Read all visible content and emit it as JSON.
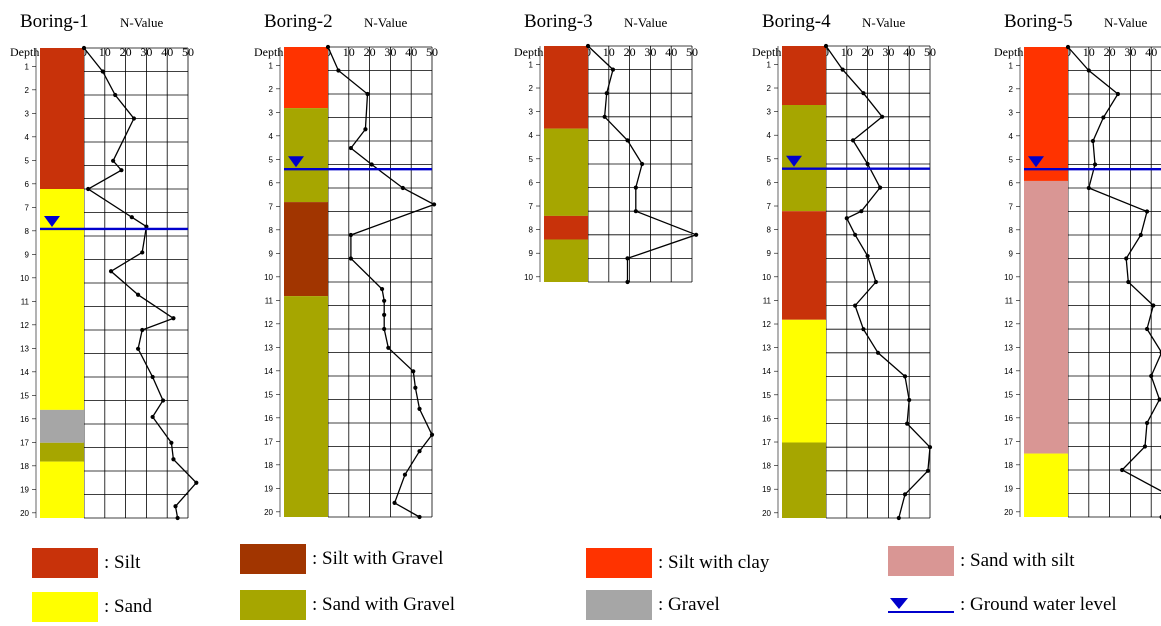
{
  "depth_label": "Depth",
  "nvalue_label": "N-Value",
  "nvalue_ticks": [
    0,
    10,
    20,
    30,
    40,
    50
  ],
  "depth_ticks": [
    1,
    2,
    3,
    4,
    5,
    6,
    7,
    8,
    9,
    10,
    11,
    12,
    13,
    14,
    15,
    16,
    17,
    18,
    19,
    20
  ],
  "soil_colors": {
    "silt": "#c8320a",
    "silt_with_gravel": "#a13500",
    "silt_with_clay": "#ff3300",
    "sand_with_silt": "#d99694",
    "sand": "#ffff00",
    "sand_with_gravel": "#a6a600",
    "gravel": "#a6a6a6"
  },
  "water_color": "#0000cc",
  "borings": [
    {
      "name": "Boring-1",
      "max_depth": 20,
      "water_level": 7.7,
      "layers": [
        {
          "top": 0,
          "bottom": 6.0,
          "soil": "silt"
        },
        {
          "top": 6.0,
          "bottom": 15.4,
          "soil": "sand"
        },
        {
          "top": 15.4,
          "bottom": 16.8,
          "soil": "gravel"
        },
        {
          "top": 16.8,
          "bottom": 17.6,
          "soil": "sand_with_gravel"
        },
        {
          "top": 17.6,
          "bottom": 20,
          "soil": "sand"
        }
      ],
      "n_values": [
        [
          0,
          0
        ],
        [
          1,
          9
        ],
        [
          2,
          15
        ],
        [
          3,
          24
        ],
        [
          4.8,
          14
        ],
        [
          5.2,
          18
        ],
        [
          6,
          2
        ],
        [
          7.2,
          23
        ],
        [
          7.6,
          30
        ],
        [
          8.7,
          28
        ],
        [
          9.5,
          13
        ],
        [
          10.5,
          26
        ],
        [
          11.5,
          43
        ],
        [
          12,
          28
        ],
        [
          12.8,
          26
        ],
        [
          14,
          33
        ],
        [
          15,
          38
        ],
        [
          15.7,
          33
        ],
        [
          16.8,
          42
        ],
        [
          17.5,
          43
        ],
        [
          18.5,
          54
        ],
        [
          19.5,
          44
        ],
        [
          20,
          45
        ]
      ]
    },
    {
      "name": "Boring-2",
      "max_depth": 20,
      "water_level": 5.2,
      "layers": [
        {
          "top": 0,
          "bottom": 2.6,
          "soil": "silt_with_clay"
        },
        {
          "top": 2.6,
          "bottom": 6.6,
          "soil": "sand_with_gravel"
        },
        {
          "top": 6.6,
          "bottom": 10.6,
          "soil": "silt_with_gravel"
        },
        {
          "top": 10.6,
          "bottom": 20,
          "soil": "sand_with_gravel"
        }
      ],
      "n_values": [
        [
          0,
          0
        ],
        [
          1,
          5
        ],
        [
          2,
          19
        ],
        [
          3.5,
          18
        ],
        [
          4.3,
          11
        ],
        [
          5,
          21
        ],
        [
          6,
          36
        ],
        [
          6.7,
          51
        ],
        [
          8,
          11
        ],
        [
          9,
          11
        ],
        [
          10.3,
          26
        ],
        [
          10.8,
          27
        ],
        [
          11.4,
          27
        ],
        [
          12,
          27
        ],
        [
          12.8,
          29
        ],
        [
          13.8,
          41
        ],
        [
          14.5,
          42
        ],
        [
          15.4,
          44
        ],
        [
          16.5,
          50
        ],
        [
          17.2,
          44
        ],
        [
          18.2,
          37
        ],
        [
          19.4,
          32
        ],
        [
          20,
          44
        ]
      ]
    },
    {
      "name": "Boring-3",
      "max_depth": 10,
      "water_level": null,
      "layers": [
        {
          "top": 0,
          "bottom": 3.5,
          "soil": "silt"
        },
        {
          "top": 3.5,
          "bottom": 7.2,
          "soil": "sand_with_gravel"
        },
        {
          "top": 7.2,
          "bottom": 8.2,
          "soil": "silt"
        },
        {
          "top": 8.2,
          "bottom": 10,
          "soil": "sand_with_gravel"
        }
      ],
      "n_values": [
        [
          0,
          0
        ],
        [
          1,
          12
        ],
        [
          2,
          9
        ],
        [
          3,
          8
        ],
        [
          4,
          19
        ],
        [
          5,
          26
        ],
        [
          6,
          23
        ],
        [
          7,
          23
        ],
        [
          8,
          52
        ],
        [
          9,
          19
        ],
        [
          10,
          19
        ]
      ]
    },
    {
      "name": "Boring-4",
      "max_depth": 20,
      "water_level": 5.2,
      "layers": [
        {
          "top": 0,
          "bottom": 2.5,
          "soil": "silt"
        },
        {
          "top": 2.5,
          "bottom": 7.0,
          "soil": "sand_with_gravel"
        },
        {
          "top": 7.0,
          "bottom": 11.6,
          "soil": "silt"
        },
        {
          "top": 11.6,
          "bottom": 16.8,
          "soil": "sand"
        },
        {
          "top": 16.8,
          "bottom": 20,
          "soil": "sand_with_gravel"
        }
      ],
      "n_values": [
        [
          0,
          0
        ],
        [
          1,
          8
        ],
        [
          2,
          18
        ],
        [
          3,
          27
        ],
        [
          4,
          13
        ],
        [
          5,
          20
        ],
        [
          6,
          26
        ],
        [
          7,
          17
        ],
        [
          7.3,
          10
        ],
        [
          8,
          14
        ],
        [
          8.9,
          20
        ],
        [
          10,
          24
        ],
        [
          11,
          14
        ],
        [
          12,
          18
        ],
        [
          13,
          25
        ],
        [
          14,
          38
        ],
        [
          15,
          40
        ],
        [
          16,
          39
        ],
        [
          17,
          50
        ],
        [
          18,
          49
        ],
        [
          19,
          38
        ],
        [
          20,
          35
        ]
      ]
    },
    {
      "name": "Boring-5",
      "max_depth": 20,
      "water_level": 5.2,
      "layers": [
        {
          "top": 0,
          "bottom": 5.7,
          "soil": "silt_with_clay"
        },
        {
          "top": 5.7,
          "bottom": 17.3,
          "soil": "sand_with_silt"
        },
        {
          "top": 17.3,
          "bottom": 20,
          "soil": "sand"
        }
      ],
      "n_values": [
        [
          0,
          0
        ],
        [
          1,
          10
        ],
        [
          2,
          24
        ],
        [
          3,
          17
        ],
        [
          4,
          12
        ],
        [
          5,
          13
        ],
        [
          6,
          10
        ],
        [
          7,
          38
        ],
        [
          8,
          35
        ],
        [
          9,
          28
        ],
        [
          10,
          29
        ],
        [
          11,
          41
        ],
        [
          12,
          38
        ],
        [
          13,
          45
        ],
        [
          14,
          40
        ],
        [
          15,
          44
        ],
        [
          16,
          38
        ],
        [
          17,
          37
        ],
        [
          18,
          26
        ],
        [
          19,
          47
        ],
        [
          20,
          45
        ]
      ]
    }
  ],
  "legend": [
    {
      "label": ": Silt",
      "soil": "silt"
    },
    {
      "label": ": Silt with Gravel",
      "soil": "silt_with_gravel"
    },
    {
      "label": ": Silt with clay",
      "soil": "silt_with_clay"
    },
    {
      "label": ": Sand with silt",
      "soil": "sand_with_silt"
    },
    {
      "label": ": Sand",
      "soil": "sand"
    },
    {
      "label": ": Sand with Gravel",
      "soil": "sand_with_gravel"
    },
    {
      "label": ": Gravel",
      "soil": "gravel"
    },
    {
      "label": ": Ground water level",
      "soil": "water"
    }
  ]
}
